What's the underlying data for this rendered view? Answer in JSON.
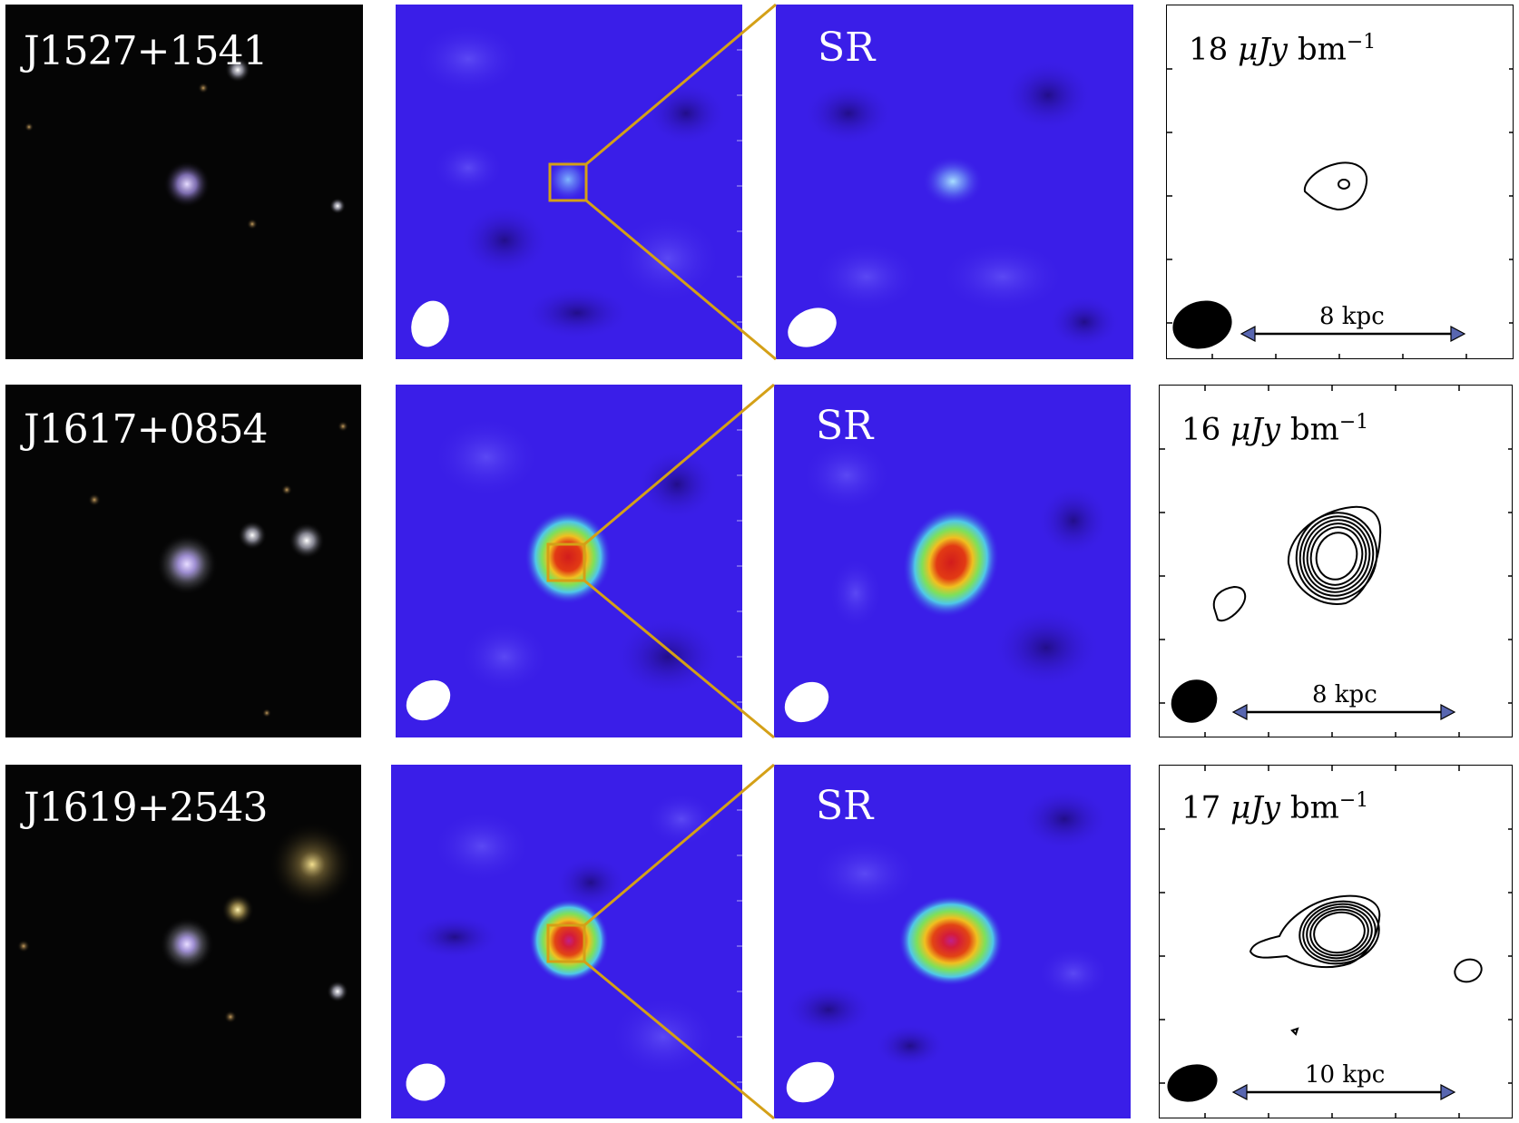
{
  "rows": [
    {
      "name": "J1527+1541",
      "sr_label": "SR",
      "rms_value": "18",
      "rms_unit": "μJy",
      "rms_beam": "bm",
      "rms_exp": "−1",
      "scale_label": "8 kpc"
    },
    {
      "name": "J1617+0854",
      "sr_label": "SR",
      "rms_value": "16",
      "rms_unit": "μJy",
      "rms_beam": "bm",
      "rms_exp": "−1",
      "scale_label": "8 kpc"
    },
    {
      "name": "J1619+2543",
      "sr_label": "SR",
      "rms_value": "17",
      "rms_unit": "μJy",
      "rms_beam": "bm",
      "rms_exp": "−1",
      "scale_label": "10 kpc"
    }
  ],
  "colors": {
    "radio_background": "#3a1ee8",
    "zoom_lines": "#d4a017",
    "optical_background": "#050505"
  }
}
